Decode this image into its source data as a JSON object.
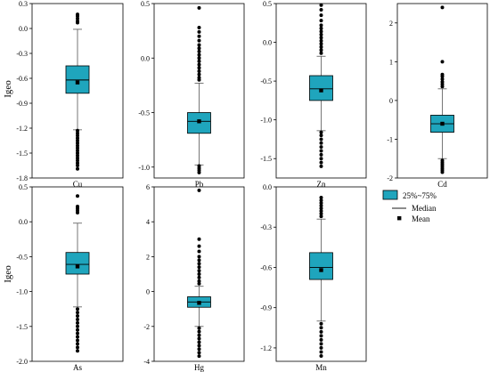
{
  "chart_data": {
    "type": "box",
    "ylabel": "Igeo",
    "colors": {
      "box": "#1fa5bd",
      "line": "#000000",
      "whisker": "#555555"
    },
    "legend": {
      "position": "bottom-right",
      "entries": [
        "25%~75%",
        "Median",
        "Mean"
      ]
    },
    "panels": [
      {
        "element": "Cu",
        "ylim": [
          -1.8,
          0.3
        ],
        "ticks": [
          -1.8,
          -1.5,
          -1.2,
          -0.9,
          -0.6,
          -0.3,
          0.0,
          0.3
        ],
        "tick_labels": [
          "-1.8",
          "-1.5",
          "-1.2",
          "-0.9",
          "-0.6",
          "-0.3",
          "0.0",
          "0.3"
        ],
        "q1": -0.78,
        "median": -0.62,
        "q3": -0.45,
        "mean": -0.65,
        "whisker_low": -1.22,
        "whisker_high": -0.01,
        "outliers": [
          0.17,
          0.15,
          0.12,
          0.09,
          0.07,
          -1.23,
          -1.26,
          -1.29,
          -1.32,
          -1.35,
          -1.38,
          -1.41,
          -1.44,
          -1.47,
          -1.5,
          -1.53,
          -1.56,
          -1.59,
          -1.62,
          -1.65,
          -1.69
        ]
      },
      {
        "element": "Pb",
        "ylim": [
          -1.1,
          0.5
        ],
        "ticks": [
          -1.0,
          -0.5,
          0.0,
          0.5
        ],
        "tick_labels": [
          "-1.0",
          "-0.5",
          "0.0",
          "0.5"
        ],
        "q1": -0.69,
        "median": -0.58,
        "q3": -0.5,
        "mean": -0.58,
        "whisker_low": -0.98,
        "whisker_high": -0.23,
        "outliers": [
          0.46,
          0.28,
          0.24,
          0.2,
          0.16,
          0.12,
          0.09,
          0.06,
          0.03,
          0.0,
          -0.03,
          -0.06,
          -0.09,
          -0.12,
          -0.15,
          -0.18,
          -0.2,
          -0.99,
          -1.01,
          -1.03,
          -1.05
        ]
      },
      {
        "element": "Zn",
        "ylim": [
          -1.75,
          0.5
        ],
        "ticks": [
          -1.5,
          -1.0,
          -0.5,
          0.0,
          0.5
        ],
        "tick_labels": [
          "-1.5",
          "-1.0",
          "-0.5",
          "0.0",
          "0.5"
        ],
        "q1": -0.75,
        "median": -0.6,
        "q3": -0.43,
        "mean": -0.62,
        "whisker_low": -1.14,
        "whisker_high": -0.18,
        "outliers": [
          0.48,
          0.42,
          0.35,
          0.28,
          0.22,
          0.18,
          0.14,
          0.1,
          0.06,
          0.02,
          -0.02,
          -0.06,
          -0.1,
          -0.14,
          -1.16,
          -1.2,
          -1.25,
          -1.3,
          -1.35,
          -1.4,
          -1.45,
          -1.5,
          -1.55,
          -1.6
        ]
      },
      {
        "element": "Cd",
        "ylim": [
          -2.0,
          2.5
        ],
        "ticks": [
          -2,
          -1,
          0,
          1,
          2
        ],
        "tick_labels": [
          "-2",
          "-1",
          "0",
          "1",
          "2"
        ],
        "q1": -0.82,
        "median": -0.6,
        "q3": -0.38,
        "mean": -0.6,
        "whisker_low": -1.5,
        "whisker_high": 0.3,
        "outliers": [
          2.4,
          1.0,
          0.67,
          0.62,
          0.55,
          0.48,
          0.42,
          0.36,
          -1.55,
          -1.6,
          -1.65,
          -1.7,
          -1.75,
          -1.8,
          -1.85
        ]
      },
      {
        "element": "As",
        "ylim": [
          -2.0,
          0.5
        ],
        "ticks": [
          -2.0,
          -1.5,
          -1.0,
          -0.5,
          0.0,
          0.5
        ],
        "tick_labels": [
          "-2.0",
          "-1.5",
          "-1.0",
          "-0.5",
          "0.0",
          "0.5"
        ],
        "q1": -0.75,
        "median": -0.61,
        "q3": -0.44,
        "mean": -0.64,
        "whisker_low": -1.22,
        "whisker_high": -0.02,
        "outliers": [
          0.37,
          0.22,
          0.19,
          0.16,
          0.13,
          -1.25,
          -1.3,
          -1.35,
          -1.4,
          -1.45,
          -1.5,
          -1.55,
          -1.6,
          -1.65,
          -1.7,
          -1.75,
          -1.8,
          -1.85
        ]
      },
      {
        "element": "Hg",
        "ylim": [
          -4.0,
          6.0
        ],
        "ticks": [
          -4,
          -2,
          0,
          2,
          4,
          6
        ],
        "tick_labels": [
          "-4",
          "-2",
          "0",
          "2",
          "4",
          "6"
        ],
        "q1": -0.9,
        "median": -0.6,
        "q3": -0.3,
        "mean": -0.65,
        "whisker_low": -2.0,
        "whisker_high": 0.3,
        "outliers": [
          5.8,
          3.0,
          2.6,
          2.3,
          2.0,
          1.8,
          1.6,
          1.4,
          1.2,
          1.0,
          0.8,
          0.6,
          0.45,
          -2.1,
          -2.3,
          -2.5,
          -2.7,
          -2.9,
          -3.1,
          -3.3,
          -3.5,
          -3.7
        ]
      },
      {
        "element": "Mn",
        "ylim": [
          -1.3,
          0.0
        ],
        "ticks": [
          -1.2,
          -0.9,
          -0.6,
          -0.3,
          0.0
        ],
        "tick_labels": [
          "-1.2",
          "-0.9",
          "-0.6",
          "-0.3",
          "0.0"
        ],
        "q1": -0.69,
        "median": -0.6,
        "q3": -0.49,
        "mean": -0.62,
        "whisker_low": -1.0,
        "whisker_high": -0.24,
        "outliers": [
          -0.08,
          -0.1,
          -0.12,
          -0.14,
          -0.16,
          -0.18,
          -0.2,
          -0.22,
          -1.02,
          -1.05,
          -1.08,
          -1.11,
          -1.14,
          -1.17,
          -1.2,
          -1.23,
          -1.26
        ]
      }
    ]
  }
}
